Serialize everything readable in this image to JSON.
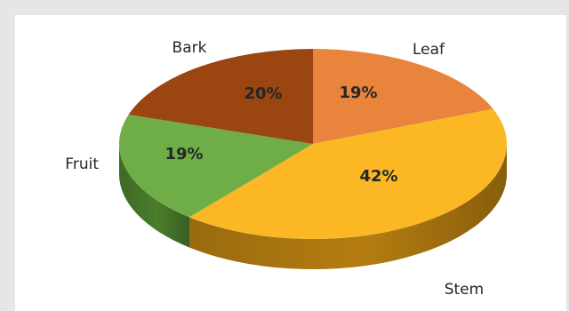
{
  "chart_data": {
    "type": "pie",
    "title": "",
    "three_d": true,
    "slices": [
      {
        "label": "Leaf",
        "value": 19,
        "display": "19%",
        "color": "#e9843d",
        "side_color": "#b45f24"
      },
      {
        "label": "Stem",
        "value": 42,
        "display": "42%",
        "color": "#fbb824",
        "side_color": "#b57d10"
      },
      {
        "label": "Fruit",
        "value": 19,
        "display": "19%",
        "color": "#6fae47",
        "side_color": "#4a7d2c"
      },
      {
        "label": "Bark",
        "value": 20,
        "display": "20%",
        "color": "#9b4511",
        "side_color": "#6c2f0a"
      }
    ],
    "legend": "none"
  }
}
